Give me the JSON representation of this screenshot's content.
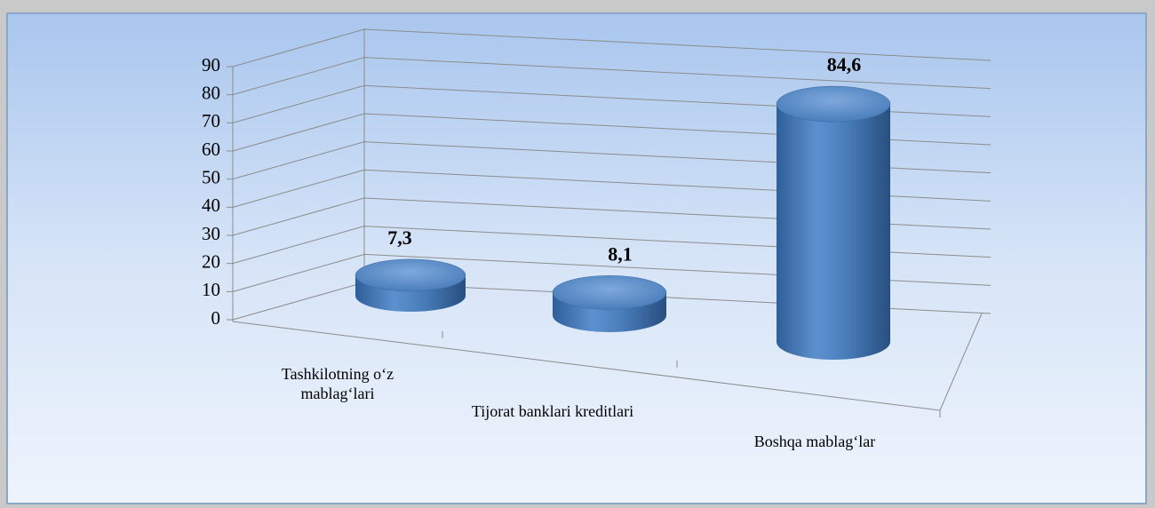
{
  "chart_data": {
    "type": "bar3d",
    "categories": [
      "Tashkilotning o‘z mablag‘lari",
      "Tijorat banklari kreditlari",
      "Boshqa mablag‘lar"
    ],
    "values": [
      7.3,
      8.1,
      84.6
    ],
    "value_labels": [
      "7,3",
      "8,1",
      "84,6"
    ],
    "color": "#4a7ebb",
    "ylim": [
      0,
      90
    ],
    "yticks": [
      0,
      10,
      20,
      30,
      40,
      50,
      60,
      70,
      80,
      90
    ],
    "grid": true
  }
}
